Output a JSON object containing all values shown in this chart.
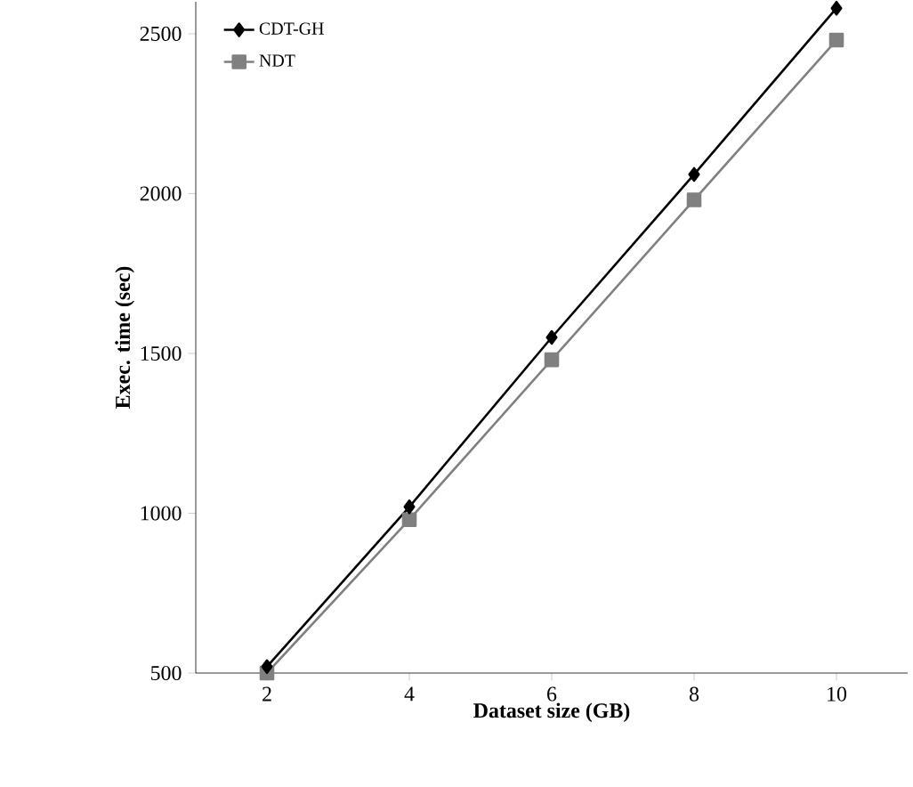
{
  "chart_data": {
    "type": "line",
    "xlabel": "Dataset size (GB)",
    "ylabel": "Exec. time (sec)",
    "x": [
      2,
      4,
      6,
      8,
      10
    ],
    "series": [
      {
        "name": "CDT-GH",
        "color": "#000000",
        "marker": "diamond",
        "values": [
          520,
          1020,
          1550,
          2060,
          2580
        ]
      },
      {
        "name": "NDT",
        "color": "#808080",
        "marker": "square",
        "values": [
          500,
          980,
          1480,
          1980,
          2480
        ]
      }
    ],
    "xlim": [
      1,
      11
    ],
    "ylim": [
      500,
      2600
    ],
    "xticks": [
      2,
      4,
      6,
      8,
      10
    ],
    "yticks": [
      500,
      1000,
      1500,
      2000,
      2500
    ],
    "grid": false,
    "legend": "top left",
    "line_style": "solid"
  }
}
